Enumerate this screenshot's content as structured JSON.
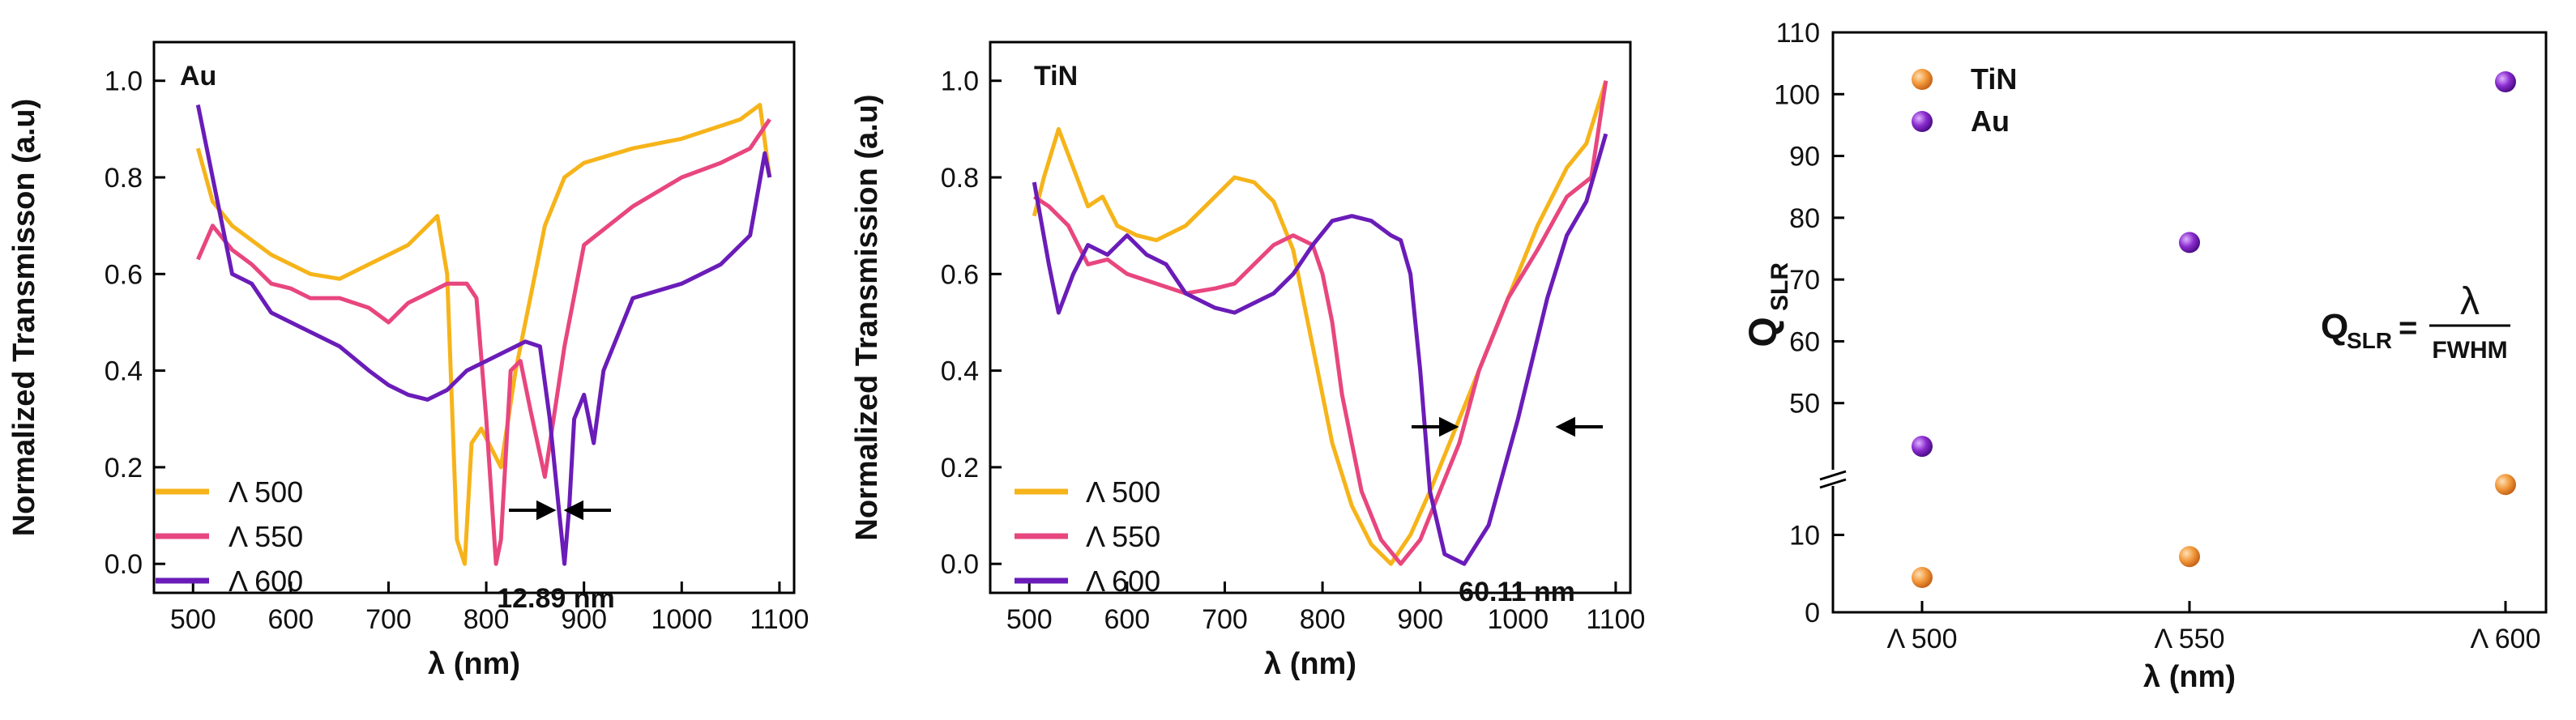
{
  "colors": {
    "L500": "#f6b41a",
    "L550": "#e8467f",
    "L600": "#6a1cb8",
    "tin_marker": "#f39a3c",
    "au_marker": "#8b2ccf",
    "axis": "#000000"
  },
  "chart_data": [
    {
      "type": "line",
      "title": "Au",
      "xlabel": "λ (nm)",
      "ylabel": "Normalized Transmisson (a.u)",
      "xlim": [
        460,
        1115
      ],
      "ylim": [
        -0.06,
        1.08
      ],
      "xticks": [
        "500",
        "600",
        "700",
        "800",
        "900",
        "1000",
        "1100"
      ],
      "yticks": [
        "0.0",
        "0.2",
        "0.4",
        "0.6",
        "0.8",
        "1.0"
      ],
      "legend": [
        "Λ 500",
        "Λ 550",
        "Λ 600"
      ],
      "annotation": "12.89 nm",
      "series": [
        {
          "name": "Λ 500",
          "color": "L500",
          "x": [
            505,
            520,
            540,
            560,
            580,
            600,
            620,
            650,
            680,
            700,
            720,
            740,
            750,
            760,
            770,
            778,
            785,
            795,
            805,
            815,
            830,
            845,
            860,
            880,
            900,
            950,
            1000,
            1030,
            1060,
            1080,
            1090
          ],
          "y": [
            0.86,
            0.75,
            0.7,
            0.67,
            0.64,
            0.62,
            0.6,
            0.59,
            0.62,
            0.64,
            0.66,
            0.7,
            0.72,
            0.6,
            0.05,
            0.0,
            0.25,
            0.28,
            0.24,
            0.2,
            0.4,
            0.55,
            0.7,
            0.8,
            0.83,
            0.86,
            0.88,
            0.9,
            0.92,
            0.95,
            0.8
          ]
        },
        {
          "name": "Λ 550",
          "color": "L550",
          "x": [
            505,
            520,
            540,
            560,
            580,
            600,
            620,
            650,
            680,
            700,
            720,
            740,
            760,
            780,
            790,
            800,
            810,
            815,
            825,
            835,
            845,
            860,
            880,
            900,
            950,
            1000,
            1040,
            1070,
            1090
          ],
          "y": [
            0.63,
            0.7,
            0.65,
            0.62,
            0.58,
            0.57,
            0.55,
            0.55,
            0.53,
            0.5,
            0.54,
            0.56,
            0.58,
            0.58,
            0.55,
            0.3,
            0.0,
            0.05,
            0.4,
            0.42,
            0.32,
            0.18,
            0.45,
            0.66,
            0.74,
            0.8,
            0.83,
            0.86,
            0.92
          ]
        },
        {
          "name": "Λ 600",
          "color": "L600",
          "x": [
            505,
            520,
            540,
            560,
            580,
            600,
            620,
            650,
            680,
            700,
            720,
            740,
            760,
            780,
            800,
            820,
            840,
            855,
            865,
            875,
            880,
            885,
            890,
            900,
            910,
            920,
            950,
            1000,
            1040,
            1070,
            1085,
            1090
          ],
          "y": [
            0.95,
            0.8,
            0.6,
            0.58,
            0.52,
            0.5,
            0.48,
            0.45,
            0.4,
            0.37,
            0.35,
            0.34,
            0.36,
            0.4,
            0.42,
            0.44,
            0.46,
            0.45,
            0.3,
            0.1,
            0.0,
            0.12,
            0.3,
            0.35,
            0.25,
            0.4,
            0.55,
            0.58,
            0.62,
            0.68,
            0.85,
            0.8
          ]
        }
      ]
    },
    {
      "type": "line",
      "title": "TiN",
      "xlabel": "λ (nm)",
      "ylabel": "Normalized Transmission (a.u)",
      "xlim": [
        460,
        1115
      ],
      "ylim": [
        -0.06,
        1.08
      ],
      "xticks": [
        "500",
        "600",
        "700",
        "800",
        "900",
        "1000",
        "1100"
      ],
      "yticks": [
        "0.0",
        "0.2",
        "0.4",
        "0.6",
        "0.8",
        "1.0"
      ],
      "legend": [
        "Λ 500",
        "Λ 550",
        "Λ 600"
      ],
      "annotation": "60.11 nm",
      "series": [
        {
          "name": "Λ 500",
          "color": "L500",
          "x": [
            505,
            515,
            530,
            545,
            560,
            575,
            590,
            610,
            630,
            660,
            690,
            710,
            730,
            750,
            770,
            790,
            810,
            830,
            850,
            870,
            890,
            910,
            930,
            960,
            990,
            1020,
            1050,
            1070,
            1090
          ],
          "y": [
            0.72,
            0.8,
            0.9,
            0.82,
            0.74,
            0.76,
            0.7,
            0.68,
            0.67,
            0.7,
            0.76,
            0.8,
            0.79,
            0.75,
            0.65,
            0.45,
            0.25,
            0.12,
            0.04,
            0.0,
            0.06,
            0.15,
            0.25,
            0.4,
            0.55,
            0.7,
            0.82,
            0.87,
            1.0
          ]
        },
        {
          "name": "Λ 550",
          "color": "L550",
          "x": [
            505,
            520,
            540,
            560,
            580,
            600,
            630,
            660,
            690,
            710,
            730,
            750,
            770,
            790,
            800,
            810,
            820,
            840,
            860,
            880,
            900,
            920,
            940,
            960,
            990,
            1020,
            1050,
            1075,
            1090
          ],
          "y": [
            0.76,
            0.74,
            0.7,
            0.62,
            0.63,
            0.6,
            0.58,
            0.56,
            0.57,
            0.58,
            0.62,
            0.66,
            0.68,
            0.66,
            0.6,
            0.5,
            0.35,
            0.15,
            0.05,
            0.0,
            0.05,
            0.15,
            0.25,
            0.4,
            0.55,
            0.65,
            0.76,
            0.8,
            1.0
          ]
        },
        {
          "name": "Λ 600",
          "color": "L600",
          "x": [
            505,
            520,
            530,
            545,
            560,
            580,
            600,
            620,
            640,
            660,
            690,
            710,
            730,
            750,
            770,
            790,
            810,
            830,
            850,
            870,
            880,
            890,
            900,
            910,
            925,
            945,
            970,
            1000,
            1030,
            1050,
            1070,
            1090
          ],
          "y": [
            0.79,
            0.62,
            0.52,
            0.6,
            0.66,
            0.64,
            0.68,
            0.64,
            0.62,
            0.56,
            0.53,
            0.52,
            0.54,
            0.56,
            0.6,
            0.66,
            0.71,
            0.72,
            0.71,
            0.68,
            0.67,
            0.6,
            0.4,
            0.15,
            0.02,
            0.0,
            0.08,
            0.3,
            0.55,
            0.68,
            0.75,
            0.89
          ]
        }
      ]
    },
    {
      "type": "scatter",
      "title": "",
      "xlabel": "λ (nm)",
      "ylabel": "Q",
      "ylabel_sub": "SLR",
      "categories": [
        "Λ 500",
        "Λ 550",
        "Λ 600"
      ],
      "yticks_upper": [
        "50",
        "60",
        "70",
        "80",
        "90",
        "100",
        "110"
      ],
      "yticks_lower": [
        "0",
        "10"
      ],
      "legend": [
        "TiN",
        "Au"
      ],
      "formula": {
        "lhs": "Q",
        "lhs_sub": "SLR",
        "eq": "=",
        "num": "λ",
        "den": "FWHM"
      },
      "series": [
        {
          "name": "TiN",
          "color": "tin_marker",
          "values": [
            4.5,
            7.2,
            16.5
          ]
        },
        {
          "name": "Au",
          "color": "au_marker",
          "values": [
            43,
            76,
            102
          ]
        }
      ]
    }
  ]
}
